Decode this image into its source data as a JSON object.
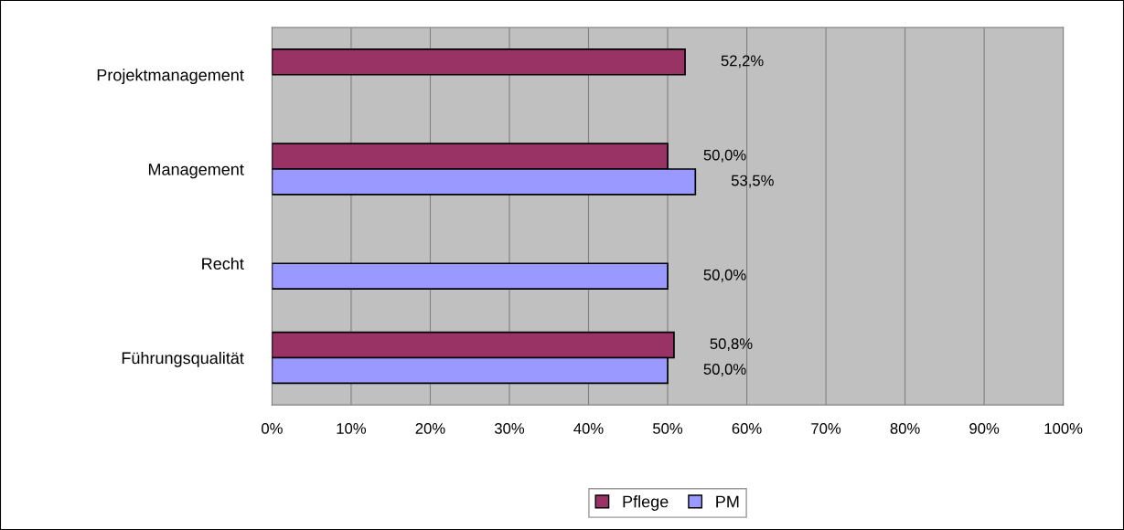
{
  "chart_data": {
    "type": "bar",
    "orientation": "horizontal",
    "categories": [
      "Projektmanagement",
      "Management",
      "Recht",
      "Führungsqualität"
    ],
    "series": [
      {
        "name": "Pflege",
        "color": "#993366",
        "values": [
          52.2,
          50.0,
          null,
          50.8
        ],
        "value_labels": [
          "52,2%",
          "50,0%",
          null,
          "50,8%"
        ]
      },
      {
        "name": "PM",
        "color": "#9999ff",
        "values": [
          null,
          53.5,
          50.0,
          50.0
        ],
        "value_labels": [
          null,
          "53,5%",
          "50,0%",
          "50,0%"
        ]
      }
    ],
    "xlim": [
      0,
      100
    ],
    "xticks": [
      {
        "value": 0,
        "label": "0%"
      },
      {
        "value": 10,
        "label": "10%"
      },
      {
        "value": 20,
        "label": "20%"
      },
      {
        "value": 30,
        "label": "30%"
      },
      {
        "value": 40,
        "label": "40%"
      },
      {
        "value": 50,
        "label": "50%"
      },
      {
        "value": 60,
        "label": "60%"
      },
      {
        "value": 70,
        "label": "70%"
      },
      {
        "value": 80,
        "label": "80%"
      },
      {
        "value": 90,
        "label": "90%"
      },
      {
        "value": 100,
        "label": "100%"
      }
    ],
    "grid": "x",
    "legend": "bottom"
  }
}
